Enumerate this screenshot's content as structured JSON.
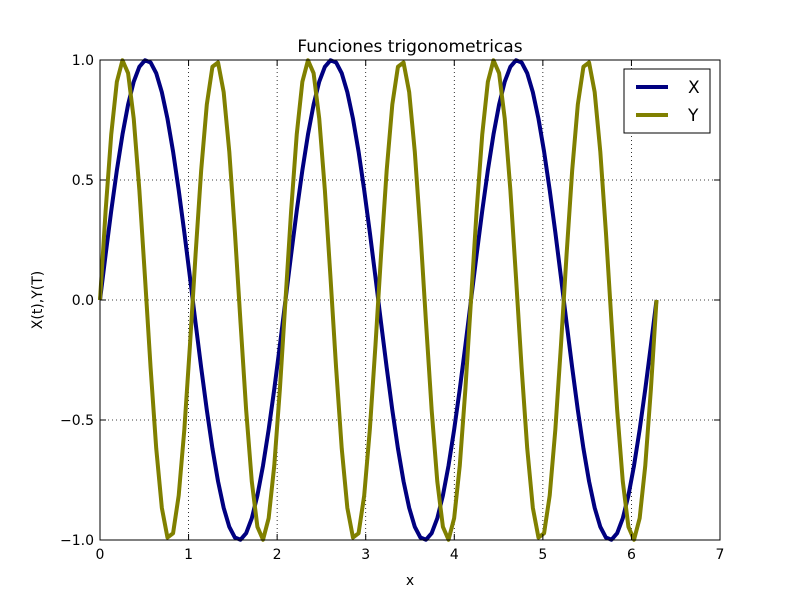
{
  "chart_data": {
    "type": "line",
    "title": "Funciones trigonometricas",
    "xlabel": "x",
    "ylabel": "X(t),Y(T)",
    "xlim": [
      0,
      7
    ],
    "ylim": [
      -1.0,
      1.0
    ],
    "xticks": [
      0,
      1,
      2,
      3,
      4,
      5,
      6,
      7
    ],
    "xtick_labels": [
      "0",
      "1",
      "2",
      "3",
      "4",
      "5",
      "6",
      "7"
    ],
    "yticks": [
      -1.0,
      -0.5,
      0.0,
      0.5,
      1.0
    ],
    "ytick_labels": [
      "−1.0",
      "−0.5",
      "0.0",
      "0.5",
      "1.0"
    ],
    "grid": true,
    "legend_position": "top-right",
    "x": [
      0.0,
      0.0635,
      0.1269,
      0.1904,
      0.2539,
      0.3173,
      0.3808,
      0.4443,
      0.5077,
      0.5712,
      0.6347,
      0.6981,
      0.7616,
      0.8251,
      0.8885,
      0.952,
      1.0155,
      1.0789,
      1.1424,
      1.2059,
      1.2693,
      1.3328,
      1.3963,
      1.4597,
      1.5232,
      1.5867,
      1.6501,
      1.7136,
      1.7771,
      1.8405,
      1.904,
      1.9675,
      2.0309,
      2.0944,
      2.1579,
      2.2213,
      2.2848,
      2.3483,
      2.4117,
      2.4752,
      2.5387,
      2.6021,
      2.6656,
      2.7291,
      2.7925,
      2.856,
      2.9195,
      2.9829,
      3.0464,
      3.1099,
      3.1733,
      3.2368,
      3.3003,
      3.3637,
      3.4272,
      3.4907,
      3.5541,
      3.6176,
      3.6811,
      3.7445,
      3.808,
      3.8715,
      3.9349,
      3.9984,
      4.0619,
      4.1253,
      4.1888,
      4.2523,
      4.3157,
      4.3792,
      4.4427,
      4.5061,
      4.5696,
      4.6331,
      4.6965,
      4.76,
      4.8235,
      4.8869,
      4.9504,
      5.0139,
      5.0773,
      5.1408,
      5.2043,
      5.2677,
      5.3312,
      5.3947,
      5.4581,
      5.5216,
      5.5851,
      5.6485,
      5.712,
      5.7755,
      5.8389,
      5.9024,
      5.9659,
      6.0293,
      6.0928,
      6.1563,
      6.2197,
      6.2832
    ],
    "series": [
      {
        "name": "X",
        "color": "#000080",
        "values": [
          0.0,
          0.1893,
          0.3717,
          0.5406,
          0.6901,
          0.8146,
          0.9096,
          0.9718,
          0.9989,
          0.9898,
          0.945,
          0.866,
          0.7557,
          0.6182,
          0.4582,
          0.2817,
          0.0951,
          -0.0951,
          -0.2817,
          -0.4582,
          -0.6182,
          -0.7557,
          -0.866,
          -0.945,
          -0.9898,
          -0.9989,
          -0.9718,
          -0.9096,
          -0.8146,
          -0.6901,
          -0.5406,
          -0.3717,
          -0.1893,
          0.0,
          0.1893,
          0.3717,
          0.5406,
          0.6901,
          0.8146,
          0.9096,
          0.9718,
          0.9989,
          0.9898,
          0.945,
          0.866,
          0.7557,
          0.6182,
          0.4582,
          0.2817,
          0.0951,
          -0.0951,
          -0.2817,
          -0.4582,
          -0.6182,
          -0.7557,
          -0.866,
          -0.945,
          -0.9898,
          -0.9989,
          -0.9718,
          -0.9096,
          -0.8146,
          -0.6901,
          -0.5406,
          -0.3717,
          -0.1893,
          0.0,
          0.1893,
          0.3717,
          0.5406,
          0.6901,
          0.8146,
          0.9096,
          0.9718,
          0.9989,
          0.9898,
          0.945,
          0.866,
          0.7557,
          0.6182,
          0.4582,
          0.2817,
          0.0951,
          -0.0951,
          -0.2817,
          -0.4582,
          -0.6182,
          -0.7557,
          -0.866,
          -0.945,
          -0.9898,
          -0.9989,
          -0.9718,
          -0.9096,
          -0.8146,
          -0.6901,
          -0.5406,
          -0.3717,
          -0.1893,
          0.0
        ]
      },
      {
        "name": "Y",
        "color": "#808000",
        "values": [
          0.0,
          0.3717,
          0.6901,
          0.9096,
          0.9989,
          0.945,
          0.7557,
          0.4582,
          0.0951,
          -0.2817,
          -0.6182,
          -0.866,
          -0.9898,
          -0.9718,
          -0.8146,
          -0.5406,
          -0.1893,
          0.1893,
          0.5406,
          0.8146,
          0.9718,
          0.9898,
          0.866,
          0.6182,
          0.2817,
          -0.0951,
          -0.4582,
          -0.7557,
          -0.945,
          -0.9989,
          -0.9096,
          -0.6901,
          -0.3717,
          0.0,
          0.3717,
          0.6901,
          0.9096,
          0.9989,
          0.945,
          0.7557,
          0.4582,
          0.0951,
          -0.2817,
          -0.6182,
          -0.866,
          -0.9898,
          -0.9718,
          -0.8146,
          -0.5406,
          -0.1893,
          0.1893,
          0.5406,
          0.8146,
          0.9718,
          0.9898,
          0.866,
          0.6182,
          0.2817,
          -0.0951,
          -0.4582,
          -0.7557,
          -0.945,
          -0.9989,
          -0.9096,
          -0.6901,
          -0.3717,
          0.0,
          0.3717,
          0.6901,
          0.9096,
          0.9989,
          0.945,
          0.7557,
          0.4582,
          0.0951,
          -0.2817,
          -0.6182,
          -0.866,
          -0.9898,
          -0.9718,
          -0.8146,
          -0.5406,
          -0.1893,
          0.1893,
          0.5406,
          0.8146,
          0.9718,
          0.9898,
          0.866,
          0.6182,
          0.2817,
          -0.0951,
          -0.4582,
          -0.7557,
          -0.945,
          -0.9989,
          -0.9096,
          -0.6901,
          -0.3717,
          0.0
        ]
      }
    ]
  }
}
